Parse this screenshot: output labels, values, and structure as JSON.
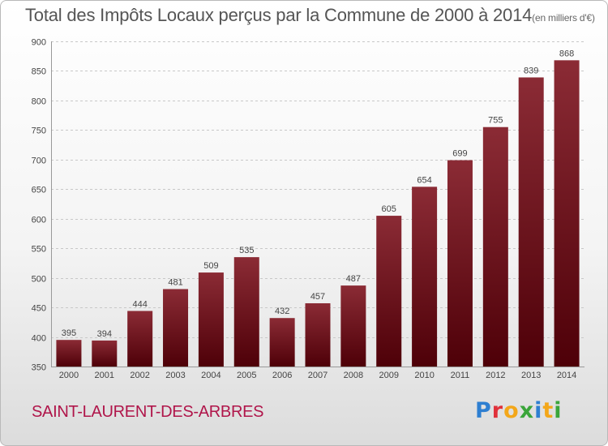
{
  "header": {
    "title": "Total des Impôts Locaux perçus par la Commune de 2000 à 2014",
    "unit": "(en milliers d'€)"
  },
  "commune": "SAINT-LAURENT-DES-ARBRES",
  "logo": {
    "letters": [
      "P",
      "r",
      "o",
      "x",
      "i",
      "t",
      "i"
    ],
    "colors": [
      "#2e7fd1",
      "#e0313b",
      "#f3a71a",
      "#3aa53a",
      "#2e7fd1",
      "#f3a71a",
      "#3aa53a"
    ]
  },
  "chart_data": {
    "type": "bar",
    "categories": [
      "2000",
      "2001",
      "2002",
      "2003",
      "2004",
      "2005",
      "2006",
      "2007",
      "2008",
      "2009",
      "2010",
      "2011",
      "2012",
      "2013",
      "2014"
    ],
    "values": [
      395,
      394,
      444,
      481,
      509,
      535,
      432,
      457,
      487,
      605,
      654,
      699,
      755,
      839,
      868
    ],
    "ylim": [
      350,
      900
    ],
    "yticks": [
      350,
      400,
      450,
      500,
      550,
      600,
      650,
      700,
      750,
      800,
      850,
      900
    ],
    "grid": true,
    "bar_color": "#7a1a24"
  }
}
